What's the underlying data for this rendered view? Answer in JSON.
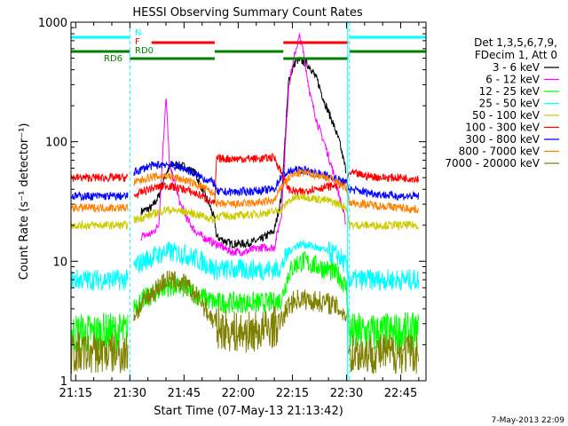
{
  "chart_data": {
    "type": "line",
    "title": "HESSI Observing Summary Count Rates",
    "xlabel": "Start Time (07-May-13 21:13:42)",
    "ylabel": "Count Rate (s⁻¹ detector⁻¹)",
    "x_tick_labels": [
      "21:15",
      "21:30",
      "21:45",
      "22:00",
      "22:15",
      "22:30",
      "22:45"
    ],
    "x_ticks_minutes": [
      15,
      30,
      45,
      60,
      75,
      90,
      105
    ],
    "xlim_minutes": [
      13.7,
      112.0
    ],
    "y_tick_labels": [
      "1",
      "10",
      "100",
      "1000"
    ],
    "ylim": [
      1,
      1000
    ],
    "yscale": "log",
    "grid": false,
    "legend_position": "top-right",
    "legend_header": [
      "Det 1,3,5,6,7,9,",
      "FDecim 1, Att 0"
    ],
    "timestamp": "7-May-2013 22:09",
    "flag_labels": [
      {
        "text": "N",
        "color": "#00ffff"
      },
      {
        "text": "F",
        "color": "#ff0000"
      },
      {
        "text": "RD0",
        "color": "#008000"
      },
      {
        "text": "RD6",
        "color": "#008000"
      }
    ],
    "flag_segments": {
      "night_cyan": [
        [
          13.7,
          30.0
        ],
        [
          90.8,
          112.0
        ]
      ],
      "flare_red": [
        [
          36.0,
          53.5
        ],
        [
          72.5,
          90.5
        ]
      ],
      "rd_green": [
        [
          13.7,
          30.0
        ],
        [
          30.0,
          53.5
        ],
        [
          53.5,
          72.5
        ],
        [
          72.5,
          90.5
        ],
        [
          90.8,
          112.0
        ]
      ]
    },
    "saa_lines_minutes": [
      30.0,
      90.8
    ],
    "series": [
      {
        "name": "3 - 6 keV",
        "color": "#000000",
        "x": [
          30,
          33,
          36,
          38,
          40,
          42,
          45,
          48,
          50,
          52,
          53.5,
          54,
          58,
          62,
          66,
          70,
          72,
          74,
          76,
          78,
          80,
          82,
          84,
          86,
          88,
          90,
          91,
          96,
          100,
          105,
          110
        ],
        "y": [
          null,
          26,
          28,
          35,
          55,
          65,
          62,
          55,
          40,
          30,
          22,
          16,
          14,
          14,
          15,
          18,
          35,
          330,
          480,
          470,
          420,
          320,
          210,
          150,
          100,
          55,
          null,
          null,
          null,
          null,
          null
        ]
      },
      {
        "name": "6 - 12 keV",
        "color": "#ff00ff",
        "x": [
          30,
          33,
          36,
          38,
          39,
          40,
          41,
          42,
          44,
          46,
          48,
          50,
          52,
          53.5,
          54,
          58,
          62,
          66,
          70,
          72,
          74,
          76,
          77,
          78,
          80,
          82,
          84,
          86,
          88,
          90,
          91
        ],
        "y": [
          null,
          16,
          17,
          20,
          70,
          250,
          60,
          50,
          30,
          22,
          18,
          16,
          15,
          14,
          14,
          12,
          12,
          13,
          13,
          25,
          300,
          600,
          760,
          570,
          240,
          140,
          95,
          60,
          35,
          20,
          null
        ]
      },
      {
        "name": "12 - 25 keV",
        "color": "#00ff00",
        "x": [
          13.7,
          20,
          25,
          29.5,
          30,
          31,
          35,
          40,
          45,
          50,
          53.5,
          54,
          60,
          66,
          70,
          72,
          74,
          76,
          78,
          80,
          85,
          88,
          90,
          90.8,
          95,
          100,
          105,
          110
        ],
        "y": [
          2.5,
          2.5,
          2.5,
          2.5,
          null,
          4.3,
          5.0,
          6.2,
          6.0,
          5.0,
          4.5,
          4.5,
          4.5,
          4.5,
          4.5,
          4.8,
          8.0,
          9.5,
          10,
          9.5,
          8.5,
          7.5,
          6.0,
          2.5,
          2.5,
          2.5,
          2.5,
          2.5
        ]
      },
      {
        "name": "25 - 50 keV",
        "color": "#00ffff",
        "x": [
          13.7,
          20,
          25,
          29.5,
          30,
          31,
          35,
          40,
          45,
          50,
          53.5,
          54,
          60,
          66,
          70,
          72,
          74,
          76,
          78,
          80,
          85,
          88,
          90,
          90.8,
          95,
          100,
          105,
          110
        ],
        "y": [
          7.0,
          7.0,
          7.0,
          7.0,
          null,
          9.0,
          10.5,
          12,
          11.5,
          10,
          8.5,
          8.5,
          8.5,
          8.5,
          8.5,
          9.0,
          12,
          13.5,
          14,
          13.5,
          12,
          11,
          9.0,
          7.0,
          7.0,
          7.0,
          7.0,
          7.0
        ]
      },
      {
        "name": "50 - 100 keV",
        "color": "#cccc00",
        "x": [
          13.7,
          20,
          25,
          29.5,
          30,
          31,
          35,
          40,
          45,
          50,
          53.5,
          54,
          60,
          66,
          70,
          72,
          74,
          76,
          78,
          80,
          85,
          88,
          90,
          90.8,
          95,
          100,
          105,
          110
        ],
        "y": [
          20,
          20,
          20,
          20,
          null,
          22,
          24,
          27,
          26,
          24,
          22,
          24,
          24,
          25,
          26,
          27,
          32,
          34,
          35,
          34,
          32,
          30,
          28,
          20,
          20,
          20,
          20,
          20
        ]
      },
      {
        "name": "100 - 300 keV",
        "color": "#ff0000",
        "x": [
          13.7,
          20,
          25,
          29.5,
          30,
          31,
          35,
          40,
          45,
          50,
          53.5,
          54,
          60,
          66,
          70,
          72,
          74,
          76,
          78,
          80,
          85,
          88,
          90,
          90.8,
          95,
          100,
          105,
          110
        ],
        "y": [
          50,
          50,
          50,
          50,
          null,
          35,
          40,
          43,
          40,
          35,
          30,
          72,
          72,
          72,
          74,
          55,
          40,
          38,
          38,
          40,
          42,
          44,
          46,
          55,
          52,
          50,
          50,
          49
        ]
      },
      {
        "name": "300 - 800 keV",
        "color": "#0000ff",
        "x": [
          13.7,
          20,
          25,
          29.5,
          30,
          31,
          35,
          40,
          45,
          50,
          53.5,
          54,
          60,
          66,
          70,
          72,
          74,
          76,
          78,
          80,
          85,
          88,
          90,
          90.8,
          95,
          100,
          105,
          110
        ],
        "y": [
          35,
          35,
          35,
          35,
          null,
          55,
          62,
          65,
          60,
          50,
          45,
          38,
          38,
          39,
          40,
          52,
          56,
          58,
          58,
          56,
          52,
          48,
          45,
          40,
          38,
          36,
          35,
          35
        ]
      },
      {
        "name": "800 - 7000 keV",
        "color": "#ff8000",
        "x": [
          13.7,
          20,
          25,
          29.5,
          30,
          31,
          35,
          40,
          45,
          50,
          53.5,
          54,
          60,
          66,
          70,
          72,
          74,
          76,
          78,
          80,
          85,
          88,
          90,
          90.8,
          95,
          100,
          105,
          110
        ],
        "y": [
          28,
          28,
          28,
          28,
          null,
          45,
          50,
          52,
          48,
          42,
          36,
          30,
          30,
          31,
          32,
          42,
          50,
          54,
          55,
          54,
          50,
          45,
          40,
          31,
          30,
          29,
          28,
          27
        ]
      },
      {
        "name": "7000 - 20000 keV",
        "color": "#808000",
        "x": [
          13.7,
          20,
          25,
          29.5,
          30,
          31,
          35,
          40,
          45,
          50,
          53.5,
          54,
          60,
          66,
          70,
          72,
          74,
          76,
          78,
          80,
          85,
          88,
          90,
          90.8,
          95,
          100,
          105,
          110
        ],
        "y": [
          1.7,
          1.7,
          1.7,
          1.7,
          null,
          3.5,
          5.0,
          7.0,
          6.5,
          4.5,
          3.0,
          2.8,
          2.5,
          2.6,
          2.8,
          3.2,
          4.3,
          4.8,
          4.8,
          4.7,
          4.5,
          4.0,
          3.5,
          1.7,
          1.7,
          1.7,
          1.7,
          1.7
        ]
      }
    ]
  }
}
